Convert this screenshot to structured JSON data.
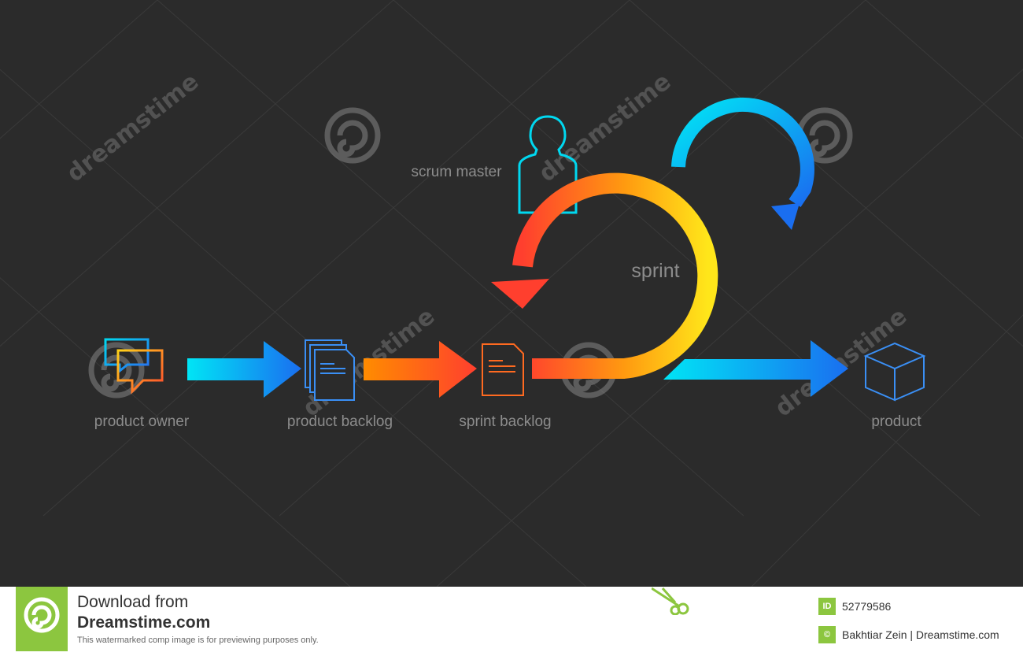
{
  "diagram": {
    "labels": {
      "product_owner": "product owner",
      "product_backlog": "product backlog",
      "sprint_backlog": "sprint backlog",
      "product": "product",
      "scrum_master": "scrum master",
      "sprint": "sprint"
    },
    "colors": {
      "background": "#2b2b2b",
      "label": "#8c8c8c",
      "cyan": "#00e0f0",
      "blue": "#1a6ef0",
      "orange": "#ff8a00",
      "red": "#ff4433",
      "yellow": "#ffe01a"
    }
  },
  "watermark": {
    "text": "dreamstime",
    "color": "#9a9a9a"
  },
  "footer": {
    "download_line1": "Download from",
    "download_line2": "Dreamstime.com",
    "note": "This watermarked comp image is for previewing purposes only.",
    "id_badge": "ID",
    "image_id": "52779586",
    "copyright_badge": "©",
    "author": "Bakhtiar Zein | Dreamstime.com",
    "accent_color": "#8cc63f"
  }
}
